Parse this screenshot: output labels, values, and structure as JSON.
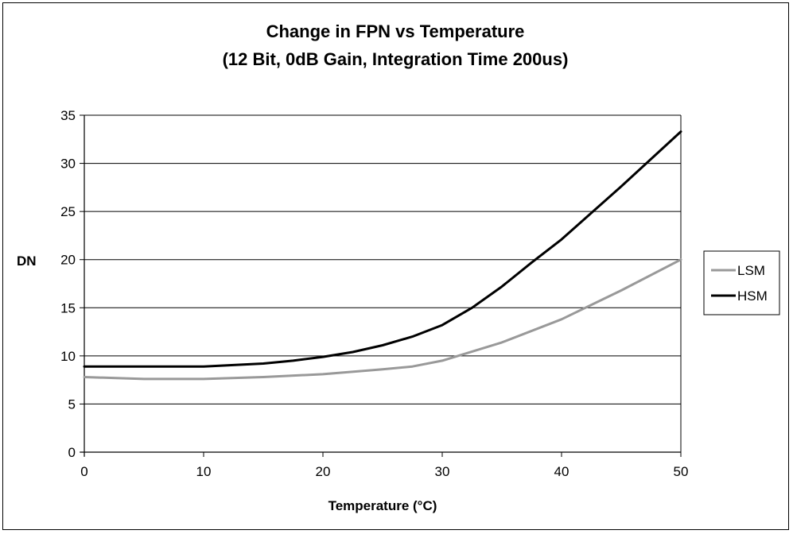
{
  "chart_data": {
    "type": "line",
    "title": "Change in FPN vs Temperature",
    "subtitle": "(12 Bit, 0dB Gain, Integration Time 200us)",
    "xlabel": "Temperature (°C)",
    "ylabel": "DN",
    "xlim": [
      0,
      50
    ],
    "ylim": [
      0,
      35
    ],
    "xticks": [
      0,
      10,
      20,
      30,
      40,
      50
    ],
    "yticks": [
      0,
      5,
      10,
      15,
      20,
      25,
      30,
      35
    ],
    "grid": "horizontal",
    "legend_position": "right",
    "series": [
      {
        "name": "LSM",
        "color": "#999999",
        "x": [
          0,
          5,
          10,
          15,
          20,
          25,
          27.5,
          30,
          35,
          40,
          45,
          50
        ],
        "y": [
          7.8,
          7.6,
          7.6,
          7.8,
          8.1,
          8.6,
          8.9,
          9.5,
          11.4,
          13.8,
          16.8,
          20
        ]
      },
      {
        "name": "HSM",
        "color": "#000000",
        "x": [
          0,
          5,
          10,
          15,
          17.5,
          20,
          22.5,
          25,
          27.5,
          30,
          32.5,
          35,
          37.5,
          40,
          45,
          50
        ],
        "y": [
          8.9,
          8.9,
          8.9,
          9.2,
          9.5,
          9.9,
          10.4,
          11.1,
          12,
          13.2,
          15,
          17.2,
          19.7,
          22.1,
          27.6,
          33.3
        ]
      }
    ]
  }
}
